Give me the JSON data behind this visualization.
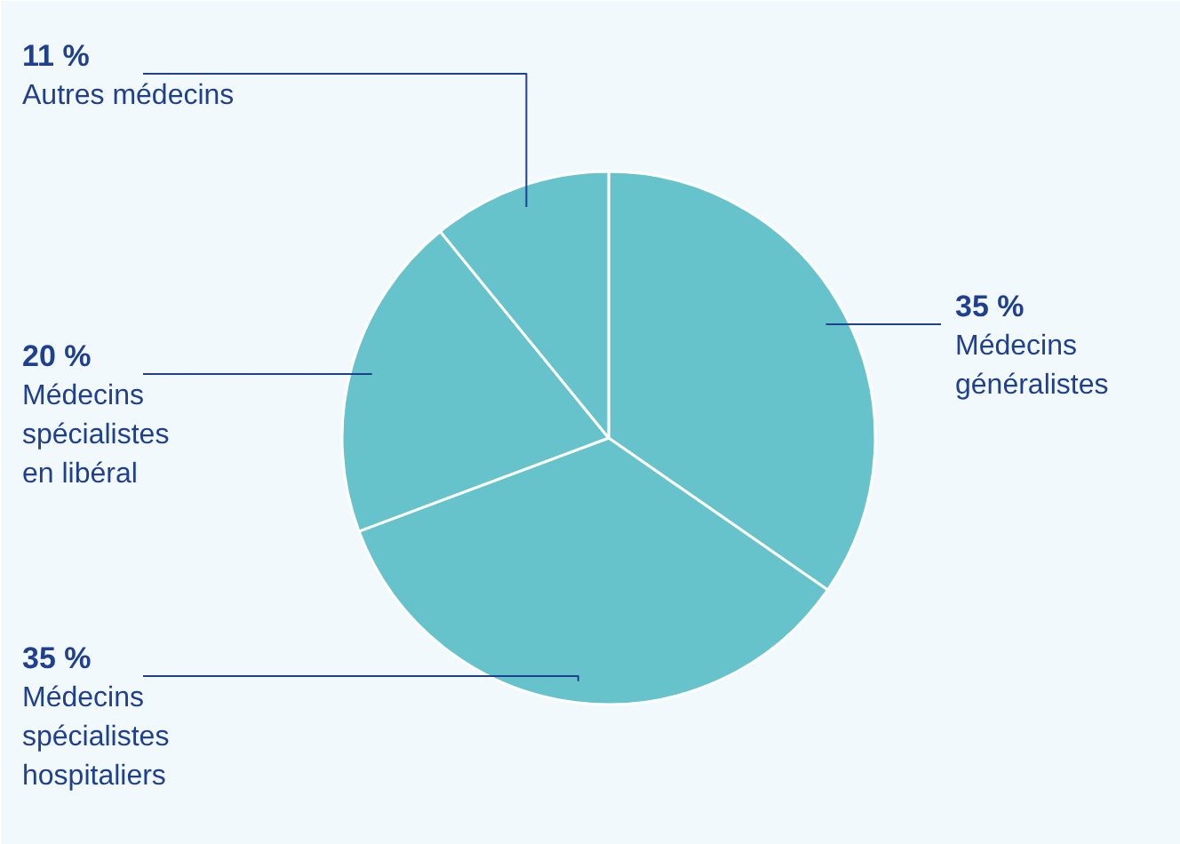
{
  "chart_data": {
    "type": "pie",
    "categories": [
      "Médecins\ngénéralistes",
      "Médecins\nspécialistes\nhospitaliers",
      "Médecins\nspécialistes\nen libéral",
      "Autres médecins"
    ],
    "values": [
      35,
      35,
      20,
      11
    ],
    "value_labels": [
      "35 %",
      "35 %",
      "20 %",
      "11 %"
    ],
    "colors": [
      "#66c3cb",
      "#66c3cb",
      "#66c3cb",
      "#66c3cb"
    ]
  }
}
